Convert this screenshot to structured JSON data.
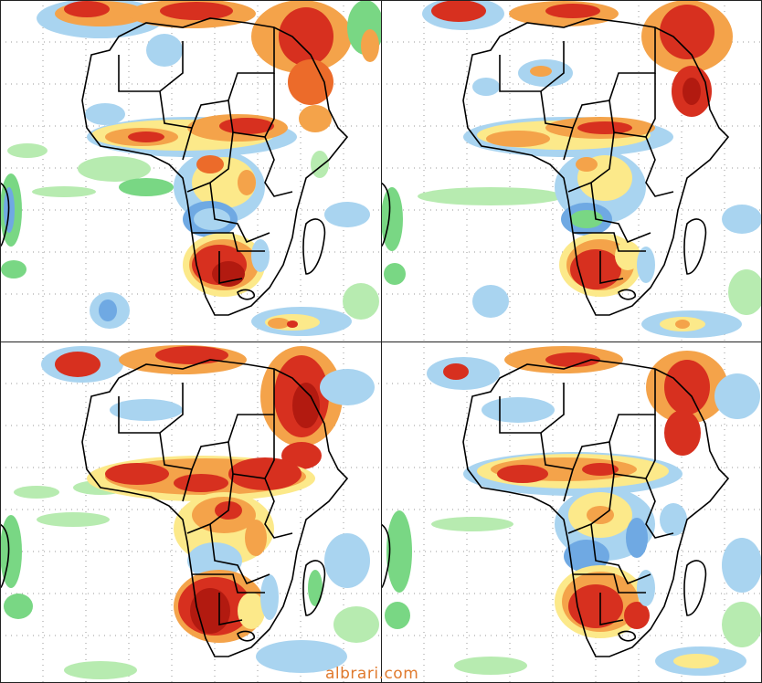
{
  "figure": {
    "panels": [
      {
        "id": "top-left"
      },
      {
        "id": "top-right"
      },
      {
        "id": "bottom-left"
      },
      {
        "id": "bottom-right"
      }
    ]
  },
  "legend_colors": {
    "light_green": "#b7ebb0",
    "green": "#79d784",
    "light_blue": "#a9d4f0",
    "blue": "#6fa9e3",
    "yellow": "#fce98a",
    "orange": "#f4a34a",
    "dark_orange": "#ec6b2a",
    "red": "#d7301f",
    "dark_red": "#b21a10"
  },
  "watermark": {
    "text": "albrari.com"
  }
}
